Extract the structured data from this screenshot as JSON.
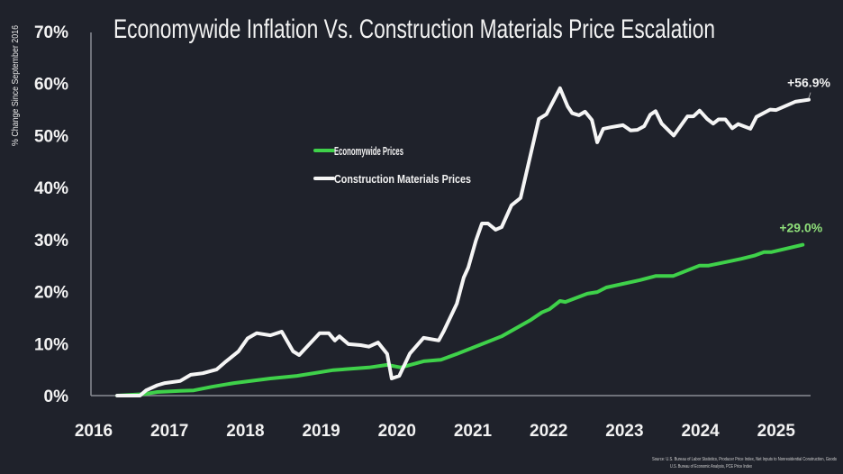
{
  "chart_data": {
    "type": "line",
    "title": "Economywide Inflation Vs. Construction Materials Price Escalation",
    "ylabel": "% Change Since September 2016",
    "xlabel": "",
    "xlim": [
      2016,
      2025.5
    ],
    "ylim": [
      0,
      70
    ],
    "x_ticks": [
      "2016",
      "2017",
      "2018",
      "2019",
      "2020",
      "2021",
      "2022",
      "2023",
      "2024",
      "2025"
    ],
    "y_ticks": [
      "0%",
      "10%",
      "20%",
      "30%",
      "40%",
      "50%",
      "60%",
      "70%"
    ],
    "grid": false,
    "legend_position": "upper-left-center",
    "series": [
      {
        "name": "Economywide Prices",
        "color": "#3fd14a",
        "end_label": "+29.0%",
        "points": [
          [
            2016.31,
            0
          ],
          [
            2016.67,
            0.3
          ],
          [
            2016.84,
            0.7
          ],
          [
            2017.14,
            0.9
          ],
          [
            2017.32,
            1.0
          ],
          [
            2017.56,
            1.7
          ],
          [
            2017.85,
            2.4
          ],
          [
            2018.33,
            3.3
          ],
          [
            2018.68,
            3.8
          ],
          [
            2019.16,
            4.9
          ],
          [
            2019.63,
            5.4
          ],
          [
            2019.87,
            5.9
          ],
          [
            2020.05,
            5.4
          ],
          [
            2020.35,
            6.6
          ],
          [
            2020.58,
            6.9
          ],
          [
            2020.79,
            8.0
          ],
          [
            2021.38,
            11.4
          ],
          [
            2021.77,
            14.6
          ],
          [
            2021.91,
            16.0
          ],
          [
            2022.01,
            16.6
          ],
          [
            2022.15,
            18.2
          ],
          [
            2022.22,
            18.0
          ],
          [
            2022.51,
            19.6
          ],
          [
            2022.64,
            19.9
          ],
          [
            2022.76,
            20.8
          ],
          [
            2023.2,
            22.2
          ],
          [
            2023.41,
            23.0
          ],
          [
            2023.64,
            23.0
          ],
          [
            2023.99,
            25.0
          ],
          [
            2024.11,
            25.0
          ],
          [
            2024.38,
            25.8
          ],
          [
            2024.54,
            26.3
          ],
          [
            2024.71,
            26.9
          ],
          [
            2024.84,
            27.6
          ],
          [
            2024.94,
            27.6
          ],
          [
            2025.35,
            29.0
          ]
        ]
      },
      {
        "name": "Construction Materials Prices",
        "color": "#f5f5f5",
        "end_label": "+56.9%",
        "points": [
          [
            2016.31,
            0
          ],
          [
            2016.61,
            0
          ],
          [
            2016.69,
            1.0
          ],
          [
            2016.84,
            2.0
          ],
          [
            2016.94,
            2.4
          ],
          [
            2017.14,
            2.8
          ],
          [
            2017.28,
            4.0
          ],
          [
            2017.44,
            4.3
          ],
          [
            2017.62,
            5.0
          ],
          [
            2017.73,
            6.4
          ],
          [
            2017.91,
            8.5
          ],
          [
            2018.03,
            11.0
          ],
          [
            2018.15,
            12.0
          ],
          [
            2018.33,
            11.6
          ],
          [
            2018.48,
            12.3
          ],
          [
            2018.63,
            8.5
          ],
          [
            2018.71,
            7.8
          ],
          [
            2018.98,
            12.0
          ],
          [
            2019.1,
            12.0
          ],
          [
            2019.18,
            10.6
          ],
          [
            2019.24,
            11.4
          ],
          [
            2019.36,
            9.9
          ],
          [
            2019.52,
            9.7
          ],
          [
            2019.63,
            9.4
          ],
          [
            2019.75,
            10.2
          ],
          [
            2019.87,
            8.0
          ],
          [
            2019.93,
            3.3
          ],
          [
            2020.03,
            3.8
          ],
          [
            2020.17,
            8.1
          ],
          [
            2020.35,
            11.1
          ],
          [
            2020.55,
            10.6
          ],
          [
            2020.62,
            12.5
          ],
          [
            2020.79,
            17.7
          ],
          [
            2020.88,
            22.7
          ],
          [
            2020.94,
            24.6
          ],
          [
            2021.04,
            29.8
          ],
          [
            2021.12,
            33.1
          ],
          [
            2021.2,
            33.1
          ],
          [
            2021.3,
            31.9
          ],
          [
            2021.38,
            32.4
          ],
          [
            2021.51,
            36.6
          ],
          [
            2021.63,
            38.0
          ],
          [
            2021.71,
            43.1
          ],
          [
            2021.87,
            53.2
          ],
          [
            2021.97,
            54.1
          ],
          [
            2022.15,
            59.1
          ],
          [
            2022.25,
            55.6
          ],
          [
            2022.31,
            54.3
          ],
          [
            2022.4,
            53.9
          ],
          [
            2022.48,
            54.6
          ],
          [
            2022.57,
            53.0
          ],
          [
            2022.64,
            48.7
          ],
          [
            2022.72,
            51.3
          ],
          [
            2022.82,
            51.6
          ],
          [
            2022.98,
            52.0
          ],
          [
            2023.08,
            51.0
          ],
          [
            2023.17,
            51.1
          ],
          [
            2023.26,
            51.8
          ],
          [
            2023.34,
            54.0
          ],
          [
            2023.41,
            54.7
          ],
          [
            2023.49,
            52.3
          ],
          [
            2023.65,
            50.0
          ],
          [
            2023.83,
            53.7
          ],
          [
            2023.91,
            53.7
          ],
          [
            2023.99,
            54.8
          ],
          [
            2024.09,
            53.2
          ],
          [
            2024.17,
            52.3
          ],
          [
            2024.24,
            53.1
          ],
          [
            2024.33,
            53.1
          ],
          [
            2024.42,
            51.4
          ],
          [
            2024.5,
            52.2
          ],
          [
            2024.66,
            51.3
          ],
          [
            2024.74,
            53.6
          ],
          [
            2024.92,
            55.0
          ],
          [
            2025.0,
            54.9
          ],
          [
            2025.25,
            56.5
          ],
          [
            2025.43,
            56.9
          ]
        ]
      }
    ],
    "source": [
      "Source: U.S. Bureau of Labor Statistics, Producer Price Index, Net Inputs to Nonresidential Construction, Goods",
      "U.S. Bureau of Economic Analysis, PCE Price Index"
    ]
  }
}
